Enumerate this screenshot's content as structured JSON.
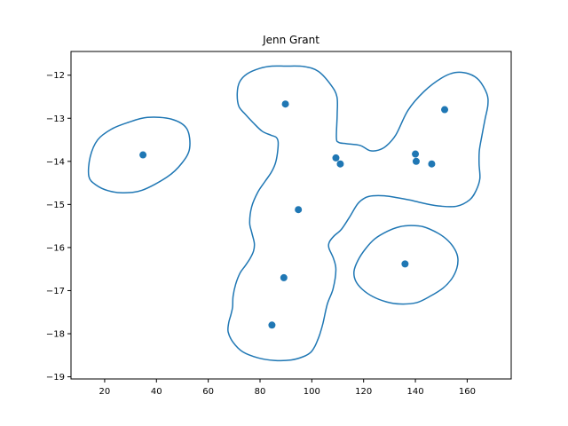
{
  "chart_data": {
    "type": "scatter",
    "title": "Jenn Grant",
    "xlabel": "",
    "ylabel": "",
    "xlim": [
      7,
      177
    ],
    "ylim": [
      -19.05,
      -11.45
    ],
    "xticks": [
      20,
      40,
      60,
      80,
      100,
      120,
      140,
      160
    ],
    "yticks": [
      -19,
      -18,
      -17,
      -16,
      -15,
      -14,
      -13,
      -12
    ],
    "grid": false,
    "legend": "none",
    "colors": {
      "series": "#1f77b4",
      "axes": "#000000",
      "background": "#ffffff"
    },
    "points": {
      "x": [
        34.8,
        89.8,
        109.3,
        111.0,
        140.0,
        140.3,
        146.3,
        151.3,
        94.8,
        136.0,
        89.2,
        84.6
      ],
      "y": [
        -13.85,
        -12.67,
        -13.92,
        -14.06,
        -13.83,
        -14.0,
        -14.06,
        -12.8,
        -15.12,
        -16.38,
        -16.7,
        -17.8
      ]
    },
    "contours": [
      {
        "x": [
          36.5,
          45.8,
          51.7,
          52.8,
          49.7,
          44.2,
          34.5,
          27.1,
          21.3,
          16.7,
          13.9,
          14.4,
          17.3,
          22.7,
          28.9,
          36.5
        ],
        "y": [
          -12.98,
          -13.02,
          -13.24,
          -13.7,
          -14.05,
          -14.36,
          -14.67,
          -14.73,
          -14.68,
          -14.55,
          -14.35,
          -13.9,
          -13.5,
          -13.25,
          -13.1,
          -12.98
        ]
      },
      {
        "x": [
          89.8,
          97.0,
          102.5,
          107.3,
          109.7,
          109.8,
          109.5,
          110.4,
          113.3,
          118.6,
          122.4,
          125.7,
          128.8,
          132.5,
          137.2,
          143.3,
          150.0,
          155.3,
          160.7,
          164.6,
          167.6,
          168.0,
          166.9,
          165.7,
          164.7,
          164.6,
          164.9,
          163.5,
          161.0,
          156.0,
          149.8,
          143.7,
          138.1,
          132.7,
          128.0,
          123.6,
          120.8,
          117.8,
          114.5,
          111.4,
          108.6,
          106.8,
          106.6,
          108.4,
          109.3,
          108.2,
          106.0,
          104.3,
          103.1,
          102.3,
          101.2,
          99.6,
          96.8,
          92.0,
          85.4,
          79.2,
          73.3,
          69.6,
          67.7,
          67.9,
          68.8,
          69.4,
          69.6,
          70.6,
          72.3,
          74.2,
          76.1,
          77.5,
          77.8,
          76.8,
          76.0,
          76.8,
          79.2,
          82.0,
          84.3,
          85.9,
          86.7,
          87.0,
          86.2,
          84.1,
          80.8,
          77.3,
          74.2,
          71.8,
          71.2,
          72.1,
          75.0,
          80.0,
          84.6,
          89.8
        ],
        "y": [
          -11.79,
          -11.8,
          -11.91,
          -12.22,
          -12.5,
          -12.91,
          -13.45,
          -13.56,
          -13.59,
          -13.63,
          -13.75,
          -13.74,
          -13.64,
          -13.38,
          -12.81,
          -12.38,
          -12.07,
          -11.94,
          -11.97,
          -12.12,
          -12.43,
          -12.69,
          -13.02,
          -13.4,
          -13.75,
          -14.06,
          -14.4,
          -14.67,
          -14.89,
          -15.04,
          -15.04,
          -14.98,
          -14.9,
          -14.84,
          -14.8,
          -14.8,
          -14.84,
          -14.98,
          -15.3,
          -15.58,
          -15.73,
          -15.87,
          -16.01,
          -16.26,
          -16.52,
          -16.96,
          -17.31,
          -17.76,
          -18.01,
          -18.14,
          -18.29,
          -18.43,
          -18.53,
          -18.61,
          -18.62,
          -18.56,
          -18.42,
          -18.2,
          -17.96,
          -17.75,
          -17.55,
          -17.38,
          -17.13,
          -16.85,
          -16.59,
          -16.43,
          -16.26,
          -16.08,
          -15.9,
          -15.65,
          -15.42,
          -15.05,
          -14.71,
          -14.46,
          -14.26,
          -14.05,
          -13.82,
          -13.55,
          -13.44,
          -13.39,
          -13.3,
          -13.1,
          -12.9,
          -12.72,
          -12.42,
          -12.16,
          -11.97,
          -11.84,
          -11.79,
          -11.79
        ]
      },
      {
        "x": [
          138.3,
          143.2,
          148.8,
          152.6,
          155.3,
          156.4,
          156.0,
          154.1,
          150.7,
          145.7,
          140.4,
          134.1,
          128.8,
          123.6,
          119.5,
          116.9,
          116.3,
          117.8,
          120.6,
          124.3,
          129.3,
          133.8,
          138.3
        ],
        "y": [
          -15.49,
          -15.52,
          -15.67,
          -15.84,
          -16.05,
          -16.25,
          -16.48,
          -16.72,
          -16.94,
          -17.13,
          -17.28,
          -17.31,
          -17.26,
          -17.14,
          -16.97,
          -16.77,
          -16.55,
          -16.3,
          -16.04,
          -15.8,
          -15.62,
          -15.52,
          -15.49
        ]
      }
    ]
  }
}
